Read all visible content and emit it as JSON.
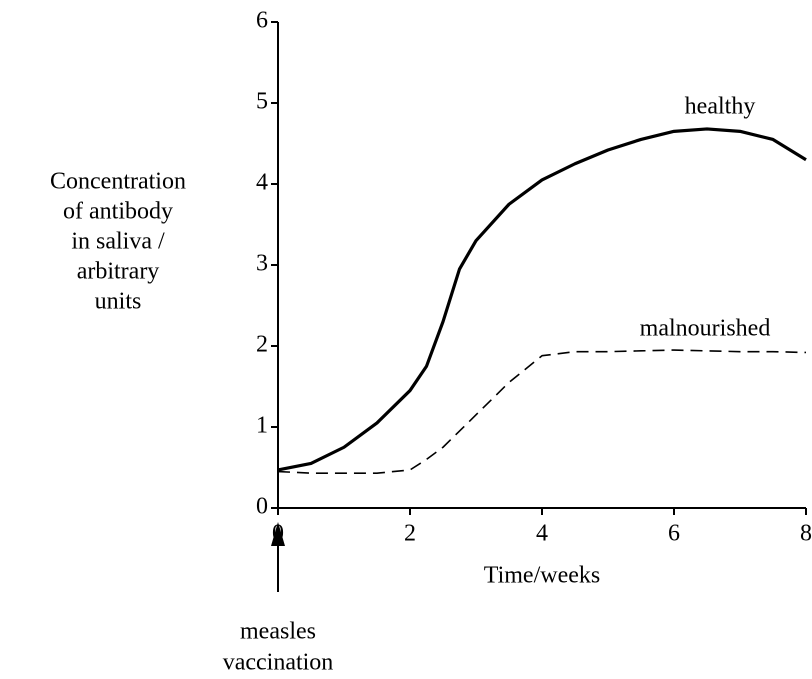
{
  "chart_data": {
    "type": "line",
    "x_label": "Time/weeks",
    "y_label": [
      "Concentration",
      "of antibody",
      "in saliva /",
      "arbitrary",
      "units"
    ],
    "x": [
      0,
      0.5,
      1,
      1.5,
      2,
      2.25,
      2.5,
      2.75,
      3,
      3.5,
      4,
      4.5,
      5,
      5.5,
      6,
      6.5,
      7,
      7.5,
      8
    ],
    "series": [
      {
        "name": "healthy",
        "color": "#000000",
        "line_style": "solid",
        "values": [
          0.47,
          0.55,
          0.75,
          1.05,
          1.45,
          1.75,
          2.3,
          2.95,
          3.3,
          3.75,
          4.05,
          4.25,
          4.42,
          4.55,
          4.65,
          4.68,
          4.65,
          4.55,
          4.3
        ]
      },
      {
        "name": "malnourished",
        "color": "#000000",
        "line_style": "dashed",
        "values": [
          0.45,
          0.43,
          0.43,
          0.43,
          0.47,
          0.6,
          0.75,
          0.95,
          1.15,
          1.55,
          1.88,
          1.93,
          1.93,
          1.94,
          1.95,
          1.94,
          1.93,
          1.93,
          1.92
        ]
      }
    ],
    "xlim": [
      0,
      8
    ],
    "ylim": [
      0,
      6
    ],
    "xticks": [
      0,
      2,
      4,
      6,
      8
    ],
    "yticks": [
      0,
      1,
      2,
      3,
      4,
      5,
      6
    ],
    "annotations": [
      {
        "text": [
          "measles",
          "vaccination"
        ],
        "x": 0
      }
    ]
  }
}
